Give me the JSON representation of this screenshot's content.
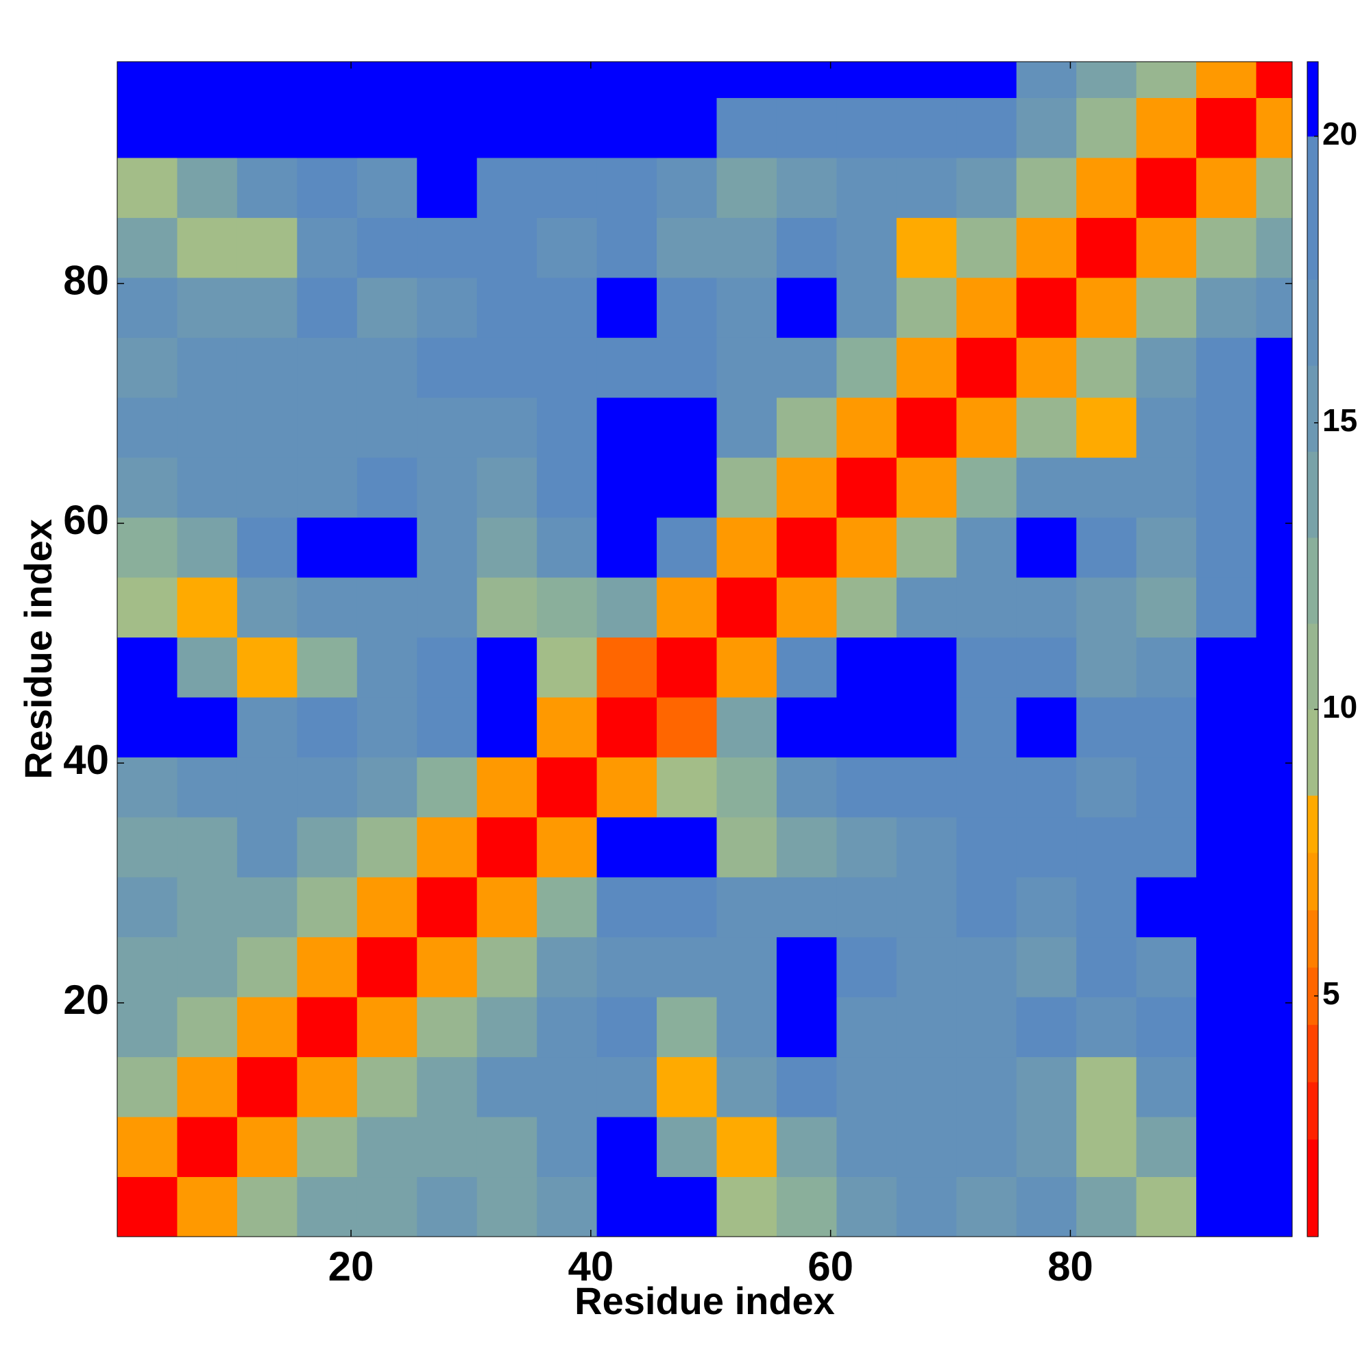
{
  "chart_data": {
    "type": "heatmap",
    "xlabel": "Residue index",
    "ylabel": "Residue index",
    "x": [
      3,
      8,
      13,
      18,
      23,
      28,
      33,
      38,
      43,
      48,
      53,
      58,
      63,
      68,
      73,
      78,
      83,
      88,
      93,
      98
    ],
    "y": [
      3,
      8,
      13,
      18,
      23,
      28,
      33,
      38,
      43,
      48,
      53,
      58,
      63,
      68,
      73,
      78,
      83,
      88,
      93,
      98
    ],
    "values": [
      [
        2,
        7,
        11,
        13,
        14,
        15,
        14,
        15,
        21,
        21,
        9,
        12,
        15,
        16,
        15,
        16,
        13,
        9,
        21,
        21
      ],
      [
        7,
        2,
        7,
        11,
        13,
        14,
        14,
        16,
        21,
        14,
        8,
        14,
        16,
        17,
        17,
        15,
        9,
        14,
        21,
        21
      ],
      [
        11,
        7,
        2,
        7,
        11,
        14,
        16,
        16,
        17,
        8,
        15,
        18,
        17,
        17,
        16,
        15,
        9,
        16,
        21,
        21
      ],
      [
        13,
        11,
        7,
        2,
        7,
        11,
        14,
        16,
        18,
        12,
        16,
        21,
        17,
        17,
        17,
        18,
        16,
        19,
        21,
        21
      ],
      [
        14,
        13,
        11,
        7,
        2,
        7,
        11,
        15,
        17,
        17,
        17,
        21,
        18,
        17,
        16,
        15,
        18,
        16,
        21,
        21
      ],
      [
        15,
        14,
        14,
        11,
        7,
        2,
        7,
        12,
        19,
        19,
        17,
        16,
        16,
        17,
        18,
        17,
        18,
        21,
        21,
        21
      ],
      [
        14,
        14,
        16,
        14,
        11,
        7,
        2,
        7,
        21,
        21,
        10,
        14,
        15,
        17,
        19,
        18,
        19,
        19,
        21,
        21
      ],
      [
        15,
        16,
        16,
        16,
        15,
        12,
        7,
        2,
        7,
        9,
        12,
        16,
        18,
        19,
        19,
        19,
        17,
        19,
        21,
        21
      ],
      [
        21,
        21,
        17,
        18,
        17,
        19,
        21,
        7,
        2,
        5,
        14,
        21,
        21,
        21,
        19,
        20,
        18,
        19,
        21,
        21
      ],
      [
        21,
        14,
        8,
        12,
        17,
        19,
        21,
        9,
        5,
        2,
        7,
        19,
        21,
        20,
        18,
        18,
        15,
        17,
        21,
        21
      ],
      [
        9,
        8,
        15,
        16,
        17,
        17,
        10,
        12,
        14,
        7,
        2,
        7,
        11,
        17,
        17,
        16,
        15,
        14,
        18,
        21
      ],
      [
        12,
        14,
        18,
        21,
        21,
        16,
        14,
        16,
        21,
        19,
        7,
        2,
        7,
        11,
        17,
        21,
        18,
        15,
        18,
        21
      ],
      [
        15,
        16,
        17,
        17,
        18,
        16,
        15,
        18,
        21,
        21,
        11,
        7,
        2,
        7,
        12,
        16,
        16,
        17,
        18,
        21
      ],
      [
        16,
        17,
        17,
        17,
        17,
        17,
        17,
        19,
        21,
        20,
        17,
        11,
        7,
        2,
        7,
        10,
        8,
        16,
        19,
        21
      ],
      [
        15,
        17,
        16,
        17,
        16,
        18,
        19,
        19,
        19,
        18,
        17,
        17,
        12,
        7,
        2,
        7,
        10,
        15,
        18,
        21
      ],
      [
        16,
        15,
        15,
        18,
        15,
        17,
        18,
        19,
        20,
        18,
        16,
        21,
        16,
        10,
        7,
        2,
        7,
        11,
        15,
        17
      ],
      [
        13,
        9,
        9,
        16,
        18,
        18,
        19,
        17,
        18,
        15,
        15,
        18,
        16,
        8,
        10,
        7,
        2,
        7,
        11,
        14
      ],
      [
        9,
        14,
        16,
        19,
        16,
        21,
        19,
        19,
        19,
        17,
        14,
        15,
        17,
        16,
        15,
        11,
        7,
        2,
        7,
        11
      ],
      [
        21,
        21,
        21,
        21,
        21,
        21,
        21,
        21,
        21,
        21,
        18,
        18,
        18,
        19,
        18,
        15,
        11,
        7,
        2,
        7
      ],
      [
        21,
        21,
        21,
        21,
        21,
        21,
        21,
        21,
        21,
        21,
        21,
        21,
        21,
        21,
        21,
        17,
        14,
        11,
        7,
        2
      ]
    ],
    "xlim": [
      0.5,
      98.5
    ],
    "ylim": [
      0.5,
      98.5
    ],
    "xticks": [
      20,
      40,
      60,
      80
    ],
    "yticks": [
      20,
      40,
      60,
      80
    ],
    "colorbar": {
      "clim": [
        0.8,
        21.3
      ],
      "ticks": [
        5,
        10,
        15,
        20
      ],
      "bounds": [
        0.8,
        2.5,
        3.5,
        4.5,
        5.5,
        6.5,
        7.5,
        8.5,
        10,
        11.5,
        13,
        14.5,
        16,
        17.5,
        20,
        21.3
      ],
      "colors": [
        "#ff0000",
        "#ff2200",
        "#ff4400",
        "#ff6600",
        "#ff7f00",
        "#ff9900",
        "#ffaa00",
        "#a3bd88",
        "#98b690",
        "#8aaf9b",
        "#79a2a8",
        "#6c98b3",
        "#6391ba",
        "#5b8ac0",
        "#0000ff"
      ]
    }
  }
}
